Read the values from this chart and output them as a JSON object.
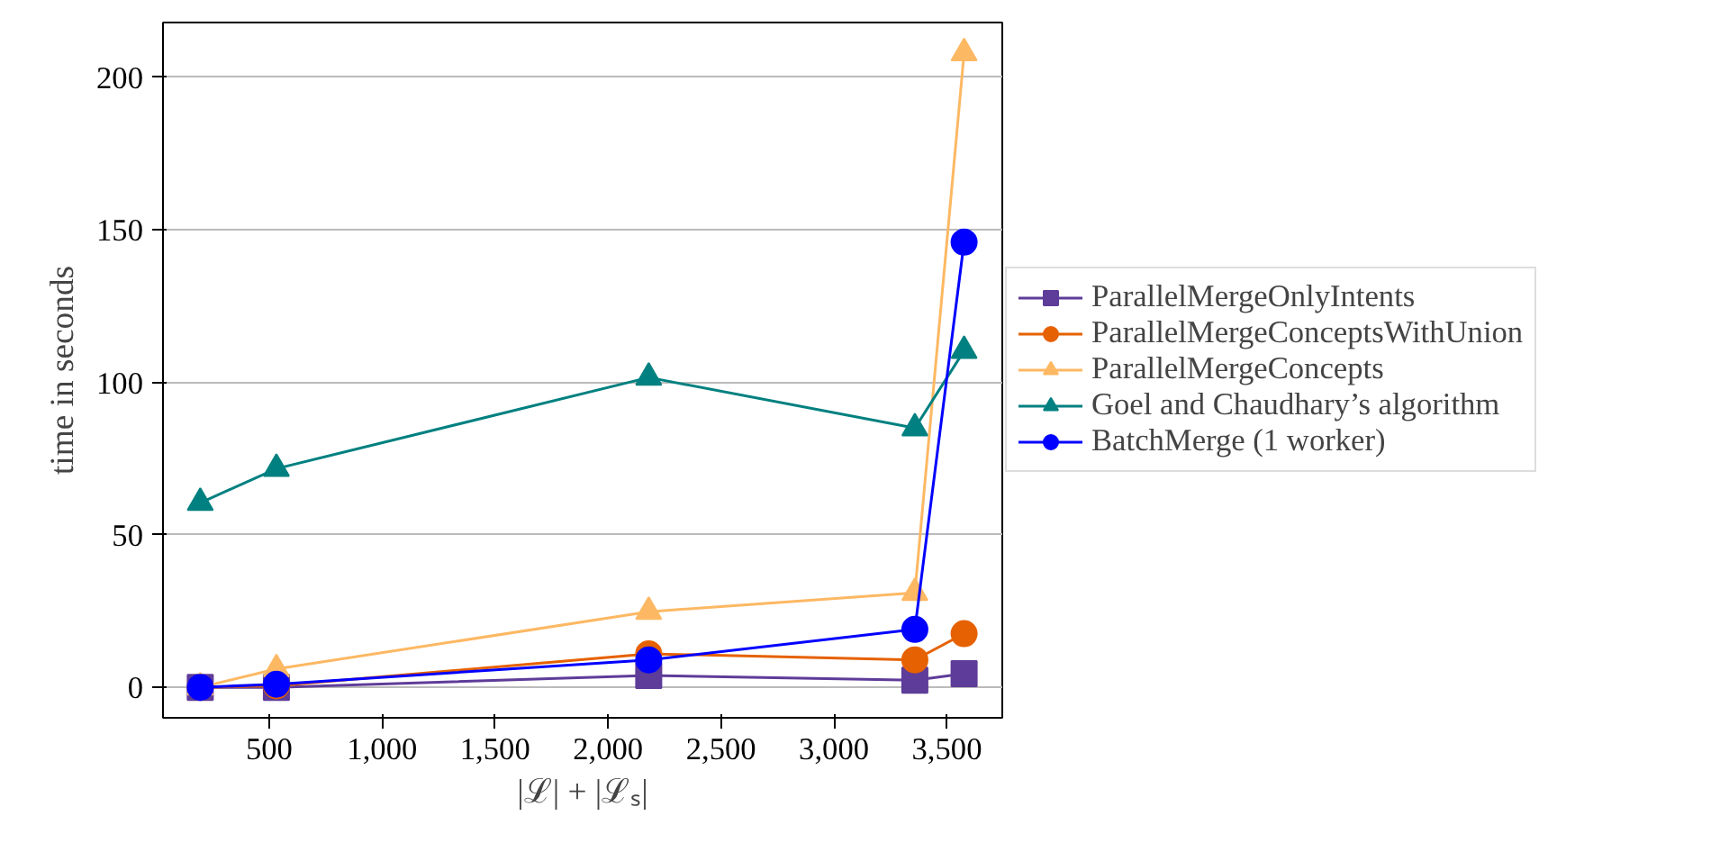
{
  "chart_data": {
    "type": "line",
    "xlabel": "|ℒ| + |ℒₛ|",
    "ylabel": "time in seconds",
    "x": [
      195,
      532,
      2180,
      3358,
      3576
    ],
    "series": [
      {
        "name": "ParallelMergeOnlyIntents",
        "color": "#5e3c99",
        "marker": "square",
        "values": [
          0,
          0,
          3.9,
          2.3,
          4.5
        ]
      },
      {
        "name": "ParallelMergeConceptsWithUnion",
        "color": "#e66101",
        "marker": "circle",
        "values": [
          0,
          0.5,
          11,
          9,
          17.6
        ]
      },
      {
        "name": "ParallelMergeConcepts",
        "color": "#fdb863",
        "marker": "triangle",
        "values": [
          0,
          6,
          24.8,
          31,
          208
        ]
      },
      {
        "name": "Goel and Chaudhary’s algorithm",
        "color": "#008080",
        "marker": "triangle",
        "values": [
          60.5,
          71.7,
          101.6,
          85,
          110.4
        ]
      },
      {
        "name": "BatchMerge (1 worker)",
        "color": "#0000ff",
        "marker": "circle",
        "values": [
          0,
          1,
          9,
          19,
          146
        ]
      }
    ],
    "xlim": [
      30,
      3745
    ],
    "ylim": [
      -10,
      218
    ],
    "xticks": [
      500,
      {
        "value": 1000,
        "label": "1,000"
      },
      {
        "value": 1500,
        "label": "1,500"
      },
      {
        "value": 2000,
        "label": "2,000"
      },
      {
        "value": 2500,
        "label": "2,500"
      },
      {
        "value": 3000,
        "label": "3,000"
      },
      {
        "value": 3500,
        "label": "3,500"
      }
    ],
    "yticks": [
      0,
      50,
      100,
      150,
      200
    ],
    "grid": "y",
    "legend": "right"
  }
}
